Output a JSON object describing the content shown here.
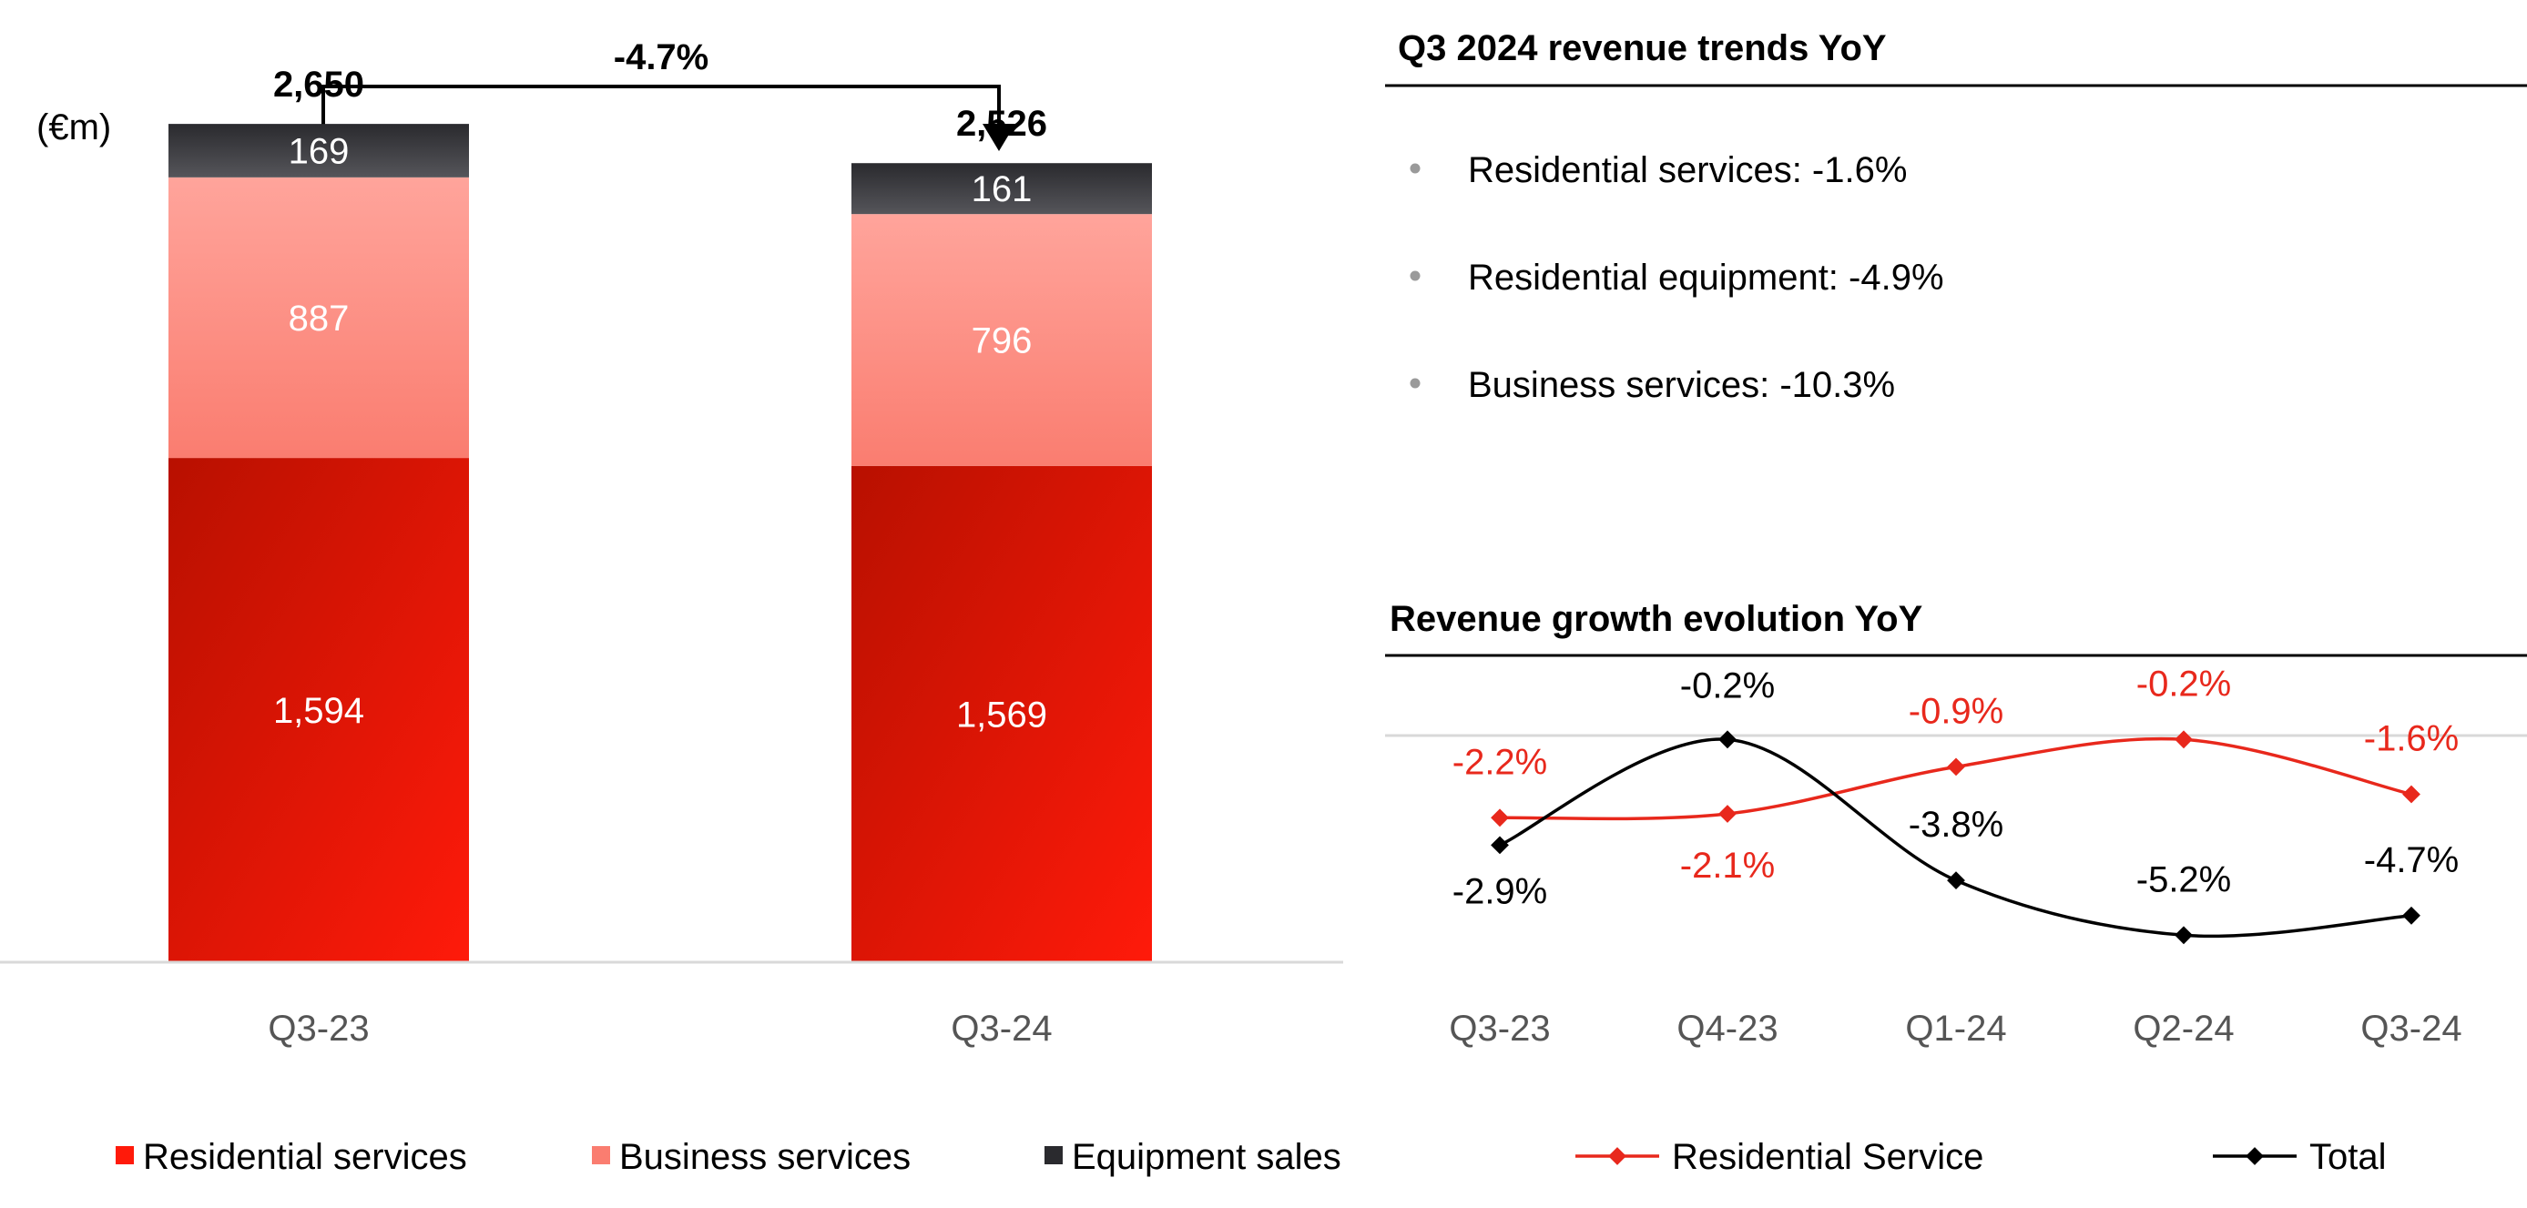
{
  "colors": {
    "residential_dark": "#b81000",
    "residential_light": "#ff1a0a",
    "business_light": "#ffa49b",
    "business_dark": "#fa7d70",
    "equipment_dark": "#2a2a2e",
    "equipment_light": "#55555a",
    "accent_red": "#e8281c",
    "text_black": "#000000",
    "text_grey": "#555555",
    "axis_grey": "#d9d9d9",
    "bullet_grey": "#9a9a9a"
  },
  "chart_data": [
    {
      "type": "bar",
      "stacked": true,
      "unit_label": "(€m)",
      "categories": [
        "Q3-23",
        "Q3-24"
      ],
      "series": [
        {
          "name": "Residential services",
          "values": [
            1594,
            1569
          ]
        },
        {
          "name": "Business services",
          "values": [
            887,
            796
          ]
        },
        {
          "name": "Equipment sales",
          "values": [
            169,
            161
          ]
        }
      ],
      "totals": [
        "2,650",
        "2,526"
      ],
      "value_labels": [
        [
          "1,594",
          "1,569"
        ],
        [
          "887",
          "796"
        ],
        [
          "169",
          "161"
        ]
      ],
      "change_label": "-4.7%"
    },
    {
      "type": "line",
      "title": "Revenue growth evolution YoY",
      "categories": [
        "Q3-23",
        "Q4-23",
        "Q1-24",
        "Q2-24",
        "Q3-24"
      ],
      "series": [
        {
          "name": "Residential Service",
          "values": [
            -2.2,
            -2.1,
            -0.9,
            -0.2,
            -1.6
          ],
          "labels": [
            "-2.2%",
            "-2.1%",
            "-0.9%",
            "-0.2%",
            "-1.6%"
          ]
        },
        {
          "name": "Total",
          "values": [
            -2.9,
            -0.2,
            -3.8,
            -5.2,
            -4.7
          ],
          "labels": [
            "-2.9%",
            "-0.2%",
            "-3.8%",
            "-5.2%",
            "-4.7%"
          ]
        }
      ]
    }
  ],
  "trends": {
    "title": "Q3 2024 revenue trends YoY",
    "items": [
      "Residential services: -1.6%",
      "Residential equipment: -4.9%",
      "Business services: -10.3%"
    ]
  }
}
